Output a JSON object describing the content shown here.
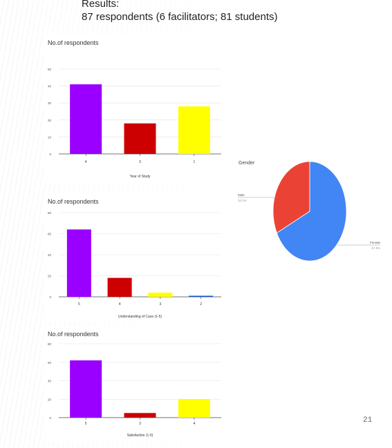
{
  "heading": {
    "line1": "Results:",
    "line2": "87 respondents (6 facilitators; 81 students)"
  },
  "slide_number": "21",
  "chart_data": [
    {
      "type": "bar",
      "title": "No.of respondents",
      "xlabel": "Year of Study",
      "ylabel": "",
      "categories": [
        "4",
        "3",
        "1"
      ],
      "values": [
        41,
        18,
        28
      ],
      "colors": [
        "#9900ff",
        "#cc0000",
        "#ffff00"
      ],
      "ylim": [
        0,
        50
      ],
      "yticks": [
        0,
        10,
        20,
        30,
        40,
        50
      ],
      "grid": true
    },
    {
      "type": "bar",
      "title": "No.of respondents",
      "xlabel": "Understanding of Case (1-5)",
      "ylabel": "",
      "categories": [
        "5",
        "4",
        "3",
        "2"
      ],
      "values": [
        64,
        18,
        4,
        1
      ],
      "colors": [
        "#9900ff",
        "#cc0000",
        "#ffff00",
        "#1155cc"
      ],
      "ylim": [
        0,
        80
      ],
      "yticks": [
        0,
        20,
        40,
        60,
        80
      ],
      "grid": true
    },
    {
      "type": "bar",
      "title": "No.of respondents",
      "xlabel": "Satisfaction (1-5)",
      "ylabel": "",
      "categories": [
        "5",
        "3",
        "4"
      ],
      "values": [
        62,
        5,
        20
      ],
      "colors": [
        "#9900ff",
        "#cc0000",
        "#ffff00"
      ],
      "ylim": [
        0,
        80
      ],
      "yticks": [
        0,
        20,
        40,
        60,
        80
      ],
      "grid": true
    },
    {
      "type": "pie",
      "title": "Gender",
      "categories": [
        "Female",
        "Male"
      ],
      "values": [
        67.8,
        32.2
      ],
      "value_labels": [
        "67.8%",
        "32.2%"
      ],
      "colors": [
        "#4285f4",
        "#ea4335"
      ]
    }
  ]
}
